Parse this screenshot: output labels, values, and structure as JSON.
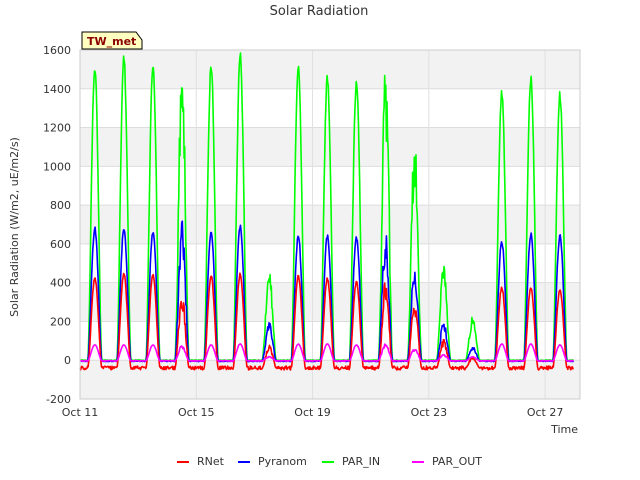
{
  "chart_data": {
    "type": "line",
    "title": "Solar Radiation",
    "xlabel": "Time",
    "ylabel": "Solar Radiation (W/m2, uE/m2/s)",
    "station_label": "TW_met",
    "xlim": [
      0,
      17.2
    ],
    "ylim": [
      -200,
      1600
    ],
    "x_ticks": [
      {
        "value": 0,
        "label": "Oct 11"
      },
      {
        "value": 4,
        "label": "Oct 15"
      },
      {
        "value": 8,
        "label": "Oct 19"
      },
      {
        "value": 12,
        "label": "Oct 23"
      },
      {
        "value": 16,
        "label": "Oct 27"
      }
    ],
    "y_ticks": [
      -200,
      0,
      200,
      400,
      600,
      800,
      1000,
      1200,
      1400,
      1600
    ],
    "grid": true,
    "background_bands": true,
    "legend_position": "bottom",
    "day_start": "Oct 11",
    "day_count": 17,
    "series": [
      {
        "name": "RNet",
        "color": "#ff0000",
        "daily_peak": [
          430,
          450,
          450,
          350,
          440,
          450,
          80,
          440,
          430,
          410,
          420,
          320,
          110,
          20,
          380,
          380,
          370
        ],
        "night_value": -40
      },
      {
        "name": "Pyranom",
        "color": "#0000ff",
        "daily_peak": [
          690,
          690,
          670,
          730,
          670,
          700,
          200,
          650,
          650,
          640,
          670,
          500,
          200,
          70,
          620,
          660,
          650
        ],
        "night_value": -5
      },
      {
        "name": "PAR_IN",
        "color": "#00ff00",
        "daily_peak": [
          1530,
          1580,
          1550,
          1580,
          1540,
          1590,
          470,
          1530,
          1480,
          1450,
          1520,
          1170,
          500,
          230,
          1400,
          1470,
          1390
        ],
        "night_value": 0
      },
      {
        "name": "PAR_OUT",
        "color": "#ff00ff",
        "daily_peak": [
          80,
          80,
          80,
          80,
          80,
          85,
          20,
          85,
          85,
          80,
          90,
          60,
          30,
          20,
          85,
          85,
          80
        ],
        "night_value": -3
      }
    ]
  }
}
